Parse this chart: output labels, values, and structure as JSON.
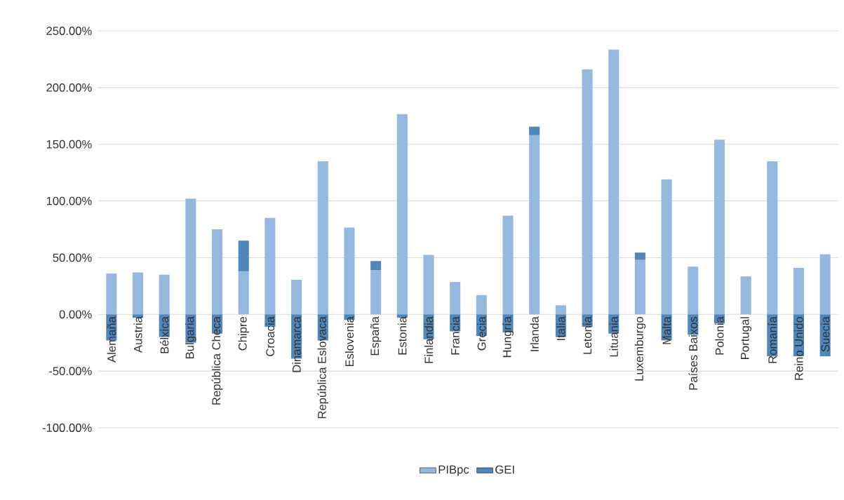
{
  "chart_data": {
    "type": "bar",
    "stacked": true,
    "categories": [
      "Alemaña",
      "Austria",
      "Bélxica",
      "Bulgaria",
      "República Checa",
      "Chipre",
      "Croacia",
      "Dinamarca",
      "República Eslovaca",
      "Eslovenia",
      "España",
      "Estonia",
      "Finlandia",
      "Francia",
      "Grecia",
      "Hungría",
      "Irlanda",
      "Italia",
      "Letonia",
      "Lituania",
      "Luxemburgo",
      "Malta",
      "Países Baixos",
      "Polonia",
      "Portugal",
      "Romanía",
      "Reino Unido",
      "Suecia"
    ],
    "series": [
      {
        "name": "PIBpc",
        "color": "#95b8df",
        "values": [
          36,
          37,
          35,
          102,
          75,
          38,
          85,
          30.5,
          135,
          76.5,
          39,
          176.5,
          52.5,
          28.5,
          17,
          87,
          158,
          8,
          216,
          233.5,
          48,
          119,
          42,
          154,
          33.5,
          135,
          41,
          53
        ]
      },
      {
        "name": "GEI",
        "color": "#4f87bd",
        "values": [
          -23,
          -3,
          -20,
          -25,
          -17,
          27,
          -11,
          -39,
          -23,
          -5,
          8,
          -3,
          -22,
          -15,
          -19,
          -16,
          7.5,
          -20,
          -11,
          -17,
          6.5,
          -23,
          -18,
          -8,
          0,
          -37,
          -37,
          -37
        ]
      }
    ],
    "ylim": [
      -100,
      250
    ],
    "yticks": [
      {
        "value": -100,
        "label": "-100.00%"
      },
      {
        "value": -50,
        "label": "-50.00%"
      },
      {
        "value": 0,
        "label": "0.00%"
      },
      {
        "value": 50,
        "label": "50.00%"
      },
      {
        "value": 100,
        "label": "100.00%"
      },
      {
        "value": 150,
        "label": "150.00%"
      },
      {
        "value": 200,
        "label": "200.00%"
      },
      {
        "value": 250,
        "label": "250.00%"
      }
    ],
    "grid": "y",
    "legend": "bottom"
  }
}
